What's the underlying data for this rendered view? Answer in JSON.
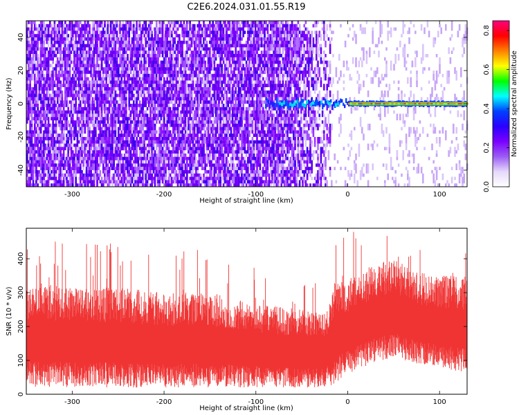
{
  "title": "C2E6.2024.031.01.55.R19",
  "chart_data": [
    {
      "type": "heatmap",
      "name": "spectrogram",
      "xlabel": "Height of straight line (km)",
      "ylabel": "Frequency (Hz)",
      "xlim": [
        -350,
        130
      ],
      "ylim": [
        -50,
        50
      ],
      "xticks": [
        -300,
        -200,
        -100,
        0,
        100
      ],
      "yticks": [
        -40,
        -20,
        0,
        20,
        40
      ],
      "colorbar": {
        "label": "Normalized spectral amplitude",
        "range": [
          0,
          0.85
        ],
        "ticks": [
          "0.0",
          "0.2",
          "0.4",
          "0.6",
          "0.8"
        ],
        "tick_values": [
          0.0,
          0.2,
          0.4,
          0.6,
          0.8
        ],
        "colormap": [
          "#ffffff",
          "#e6d8fb",
          "#9b5cf4",
          "#7a00ff",
          "#2a00ff",
          "#0040ff",
          "#00ffff",
          "#00ff00",
          "#ffff00",
          "#ff8000",
          "#ff0000",
          "#ff0080"
        ]
      },
      "signal": {
        "description_free": true,
        "start_x": -90,
        "end_x": 130,
        "center_freq": 0,
        "strong_segment_x": [
          0,
          130
        ],
        "peak_amplitude": 0.8
      },
      "noise_boundary_x": -20,
      "colors": {
        "noise": "#7a00ff",
        "noise_light": "#c8a6f7"
      }
    },
    {
      "type": "area",
      "name": "snr",
      "xlabel": "Height of straight line (km)",
      "ylabel": "SNR (10 * v/v)",
      "xlim": [
        -350,
        130
      ],
      "ylim": [
        0,
        490
      ],
      "xticks": [
        -300,
        -200,
        -100,
        0,
        100
      ],
      "yticks": [
        0,
        100,
        200,
        300,
        400
      ],
      "series": [
        {
          "color": "#f03434",
          "envelope_x": [
            -350,
            -300,
            -250,
            -200,
            -150,
            -100,
            -50,
            -25,
            -15,
            0,
            25,
            50,
            75,
            100,
            130
          ],
          "envelope_low": [
            20,
            20,
            20,
            20,
            20,
            20,
            20,
            20,
            30,
            60,
            90,
            110,
            90,
            80,
            60
          ],
          "envelope_high": [
            330,
            320,
            315,
            300,
            300,
            270,
            250,
            240,
            330,
            340,
            380,
            400,
            360,
            350,
            350
          ]
        }
      ]
    }
  ]
}
